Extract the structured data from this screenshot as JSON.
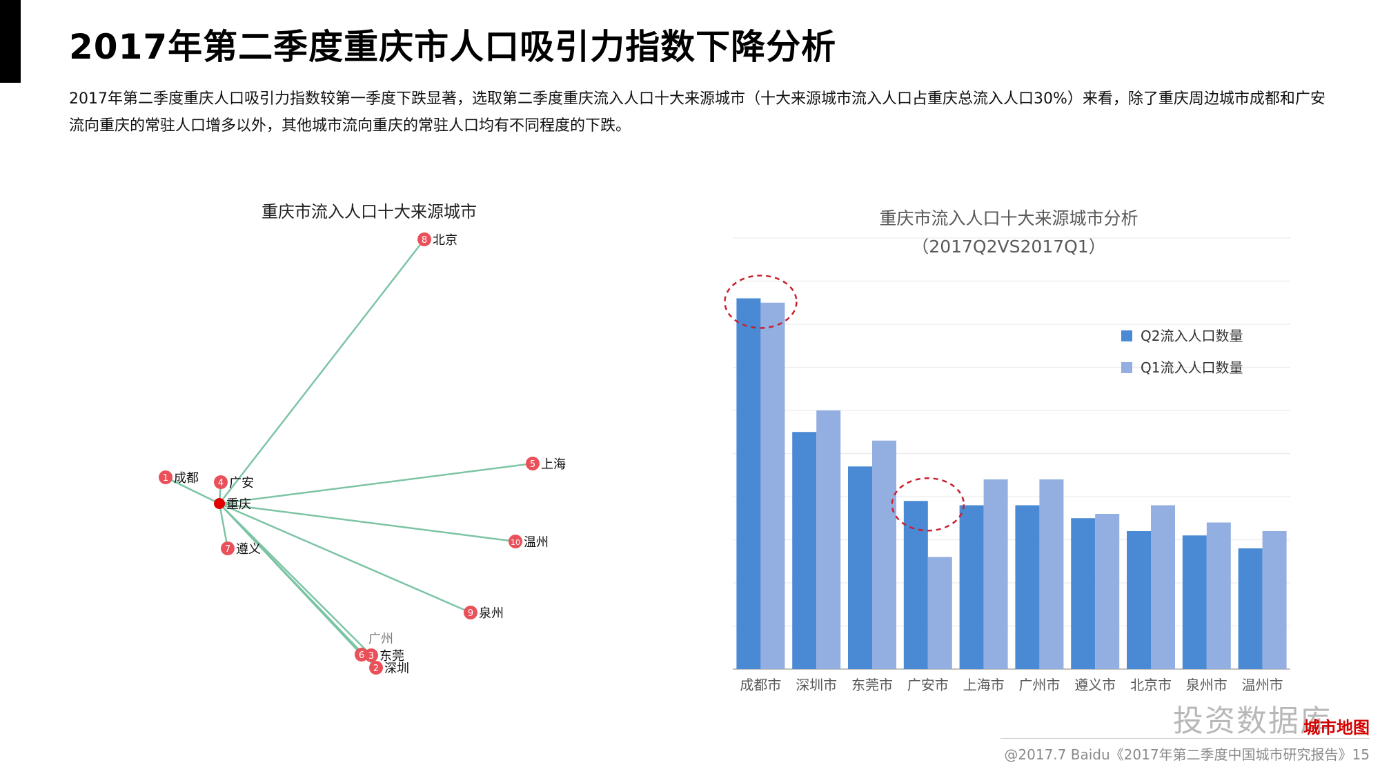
{
  "page": {
    "title": "2017年第二季度重庆市人口吸引力指数下降分析",
    "intro": "2017年第二季度重庆人口吸引力指数较第一季度下跌显著，选取第二季度重庆流入人口十大来源城市（十大来源城市流入人口占重庆总流入人口30%）来看，除了重庆周边城市成都和广安流向重庆的常驻人口增多以外，其他城市流向重庆的常驻人口均有不同程度的下跌。",
    "footer": "@2017.7 Baidu《2017年第二季度中国城市研究报告》15",
    "watermark": "投资数据库",
    "watermark_logo": "城市地图"
  },
  "colors": {
    "q2": "#4a89d4",
    "q1": "#93aee0",
    "edge": "#7cc4a4",
    "node": "#e9505a",
    "center": "#e00000",
    "circle": "#c8202c"
  },
  "network": {
    "title": "重庆市流入人口十大来源城市",
    "center": "重庆",
    "cities": [
      {
        "rank": "1",
        "name": "成都"
      },
      {
        "rank": "2",
        "name": "深圳"
      },
      {
        "rank": "3",
        "name": "东莞"
      },
      {
        "rank": "4",
        "name": "广安"
      },
      {
        "rank": "5",
        "name": "上海"
      },
      {
        "rank": "6",
        "name": "广州"
      },
      {
        "rank": "7",
        "name": "遵义"
      },
      {
        "rank": "8",
        "name": "北京"
      },
      {
        "rank": "9",
        "name": "泉州"
      },
      {
        "rank": "10",
        "name": "温州"
      }
    ]
  },
  "chart_data": {
    "type": "bar",
    "title": "重庆市流入人口十大来源城市分析",
    "subtitle": "（2017Q2VS2017Q1）",
    "categories": [
      "成都市",
      "深圳市",
      "东莞市",
      "广安市",
      "上海市",
      "广州市",
      "遵义市",
      "北京市",
      "泉州市",
      "温州市"
    ],
    "series": [
      {
        "name": "Q2流入人口数量",
        "values": [
          86,
          55,
          47,
          39,
          38,
          38,
          35,
          32,
          31,
          28
        ]
      },
      {
        "name": "Q1流入人口数量",
        "values": [
          85,
          60,
          53,
          26,
          44,
          44,
          36,
          38,
          34,
          32
        ]
      }
    ],
    "ylim": [
      0,
      100
    ],
    "grid": true,
    "y_ticks_shown": false,
    "legend_position": "right",
    "highlighted_categories": [
      "成都市",
      "广安市"
    ]
  }
}
